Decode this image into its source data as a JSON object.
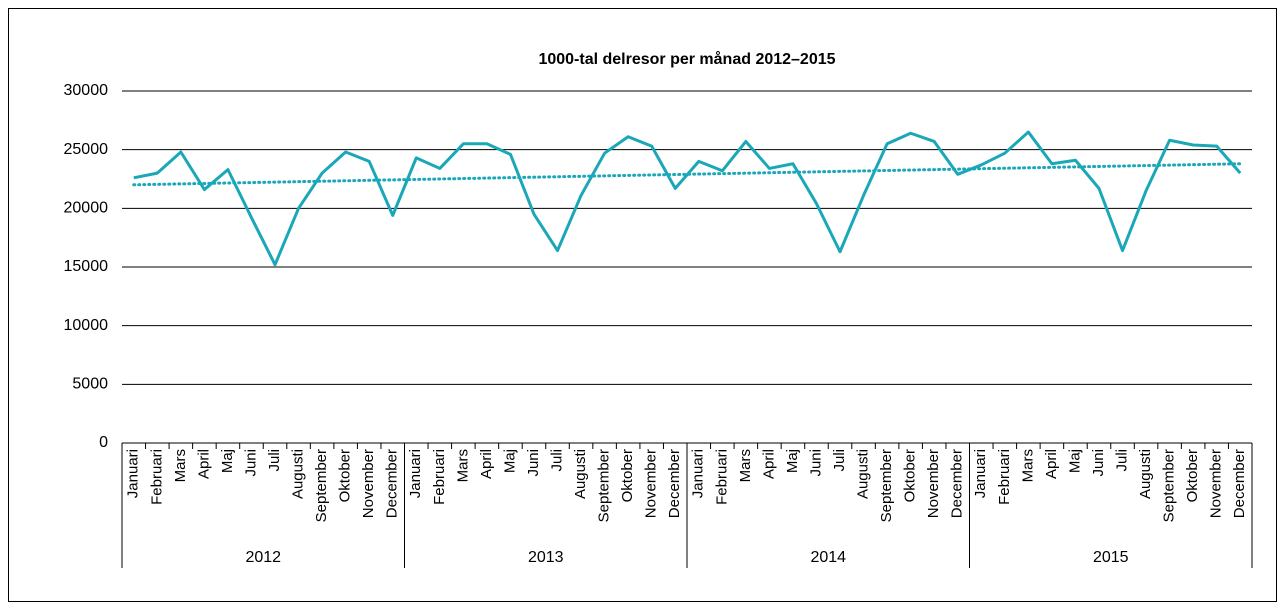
{
  "chart_data": {
    "type": "line",
    "title": "1000-tal delresor per månad 2012–2015",
    "categories": [
      "Januari",
      "Februari",
      "Mars",
      "April",
      "Maj",
      "Juni",
      "Juli",
      "Augusti",
      "September",
      "Oktober",
      "November",
      "December",
      "Januari",
      "Februari",
      "Mars",
      "April",
      "Maj",
      "Juni",
      "Juli",
      "Augusti",
      "September",
      "Oktober",
      "November",
      "December",
      "Januari",
      "Februari",
      "Mars",
      "April",
      "Maj",
      "Juni",
      "Juli",
      "Augusti",
      "September",
      "Oktober",
      "November",
      "December",
      "Januari",
      "Februari",
      "Mars",
      "April",
      "Maj",
      "Juni",
      "Juli",
      "Augusti",
      "September",
      "Oktober",
      "November",
      "December"
    ],
    "category_groups": [
      "2012",
      "2013",
      "2014",
      "2015"
    ],
    "series": [
      {
        "color": "#1aa7b8",
        "values": [
          22600,
          23000,
          24800,
          21600,
          23300,
          19200,
          15200,
          20000,
          23000,
          24800,
          24000,
          19400,
          24300,
          23400,
          25500,
          25500,
          24600,
          19500,
          16400,
          21100,
          24700,
          26100,
          25300,
          21700,
          24000,
          23200,
          25700,
          23400,
          23800,
          20400,
          16300,
          21100,
          25500,
          26400,
          25700,
          22900,
          23700,
          24700,
          26500,
          23800,
          24100,
          21700,
          16400,
          21500,
          25800,
          25400,
          25300,
          23000
        ]
      }
    ],
    "trendline": true,
    "ylim": [
      0,
      30000
    ],
    "yticks": [
      0,
      5000,
      10000,
      15000,
      20000,
      25000,
      30000
    ],
    "grid": true
  }
}
